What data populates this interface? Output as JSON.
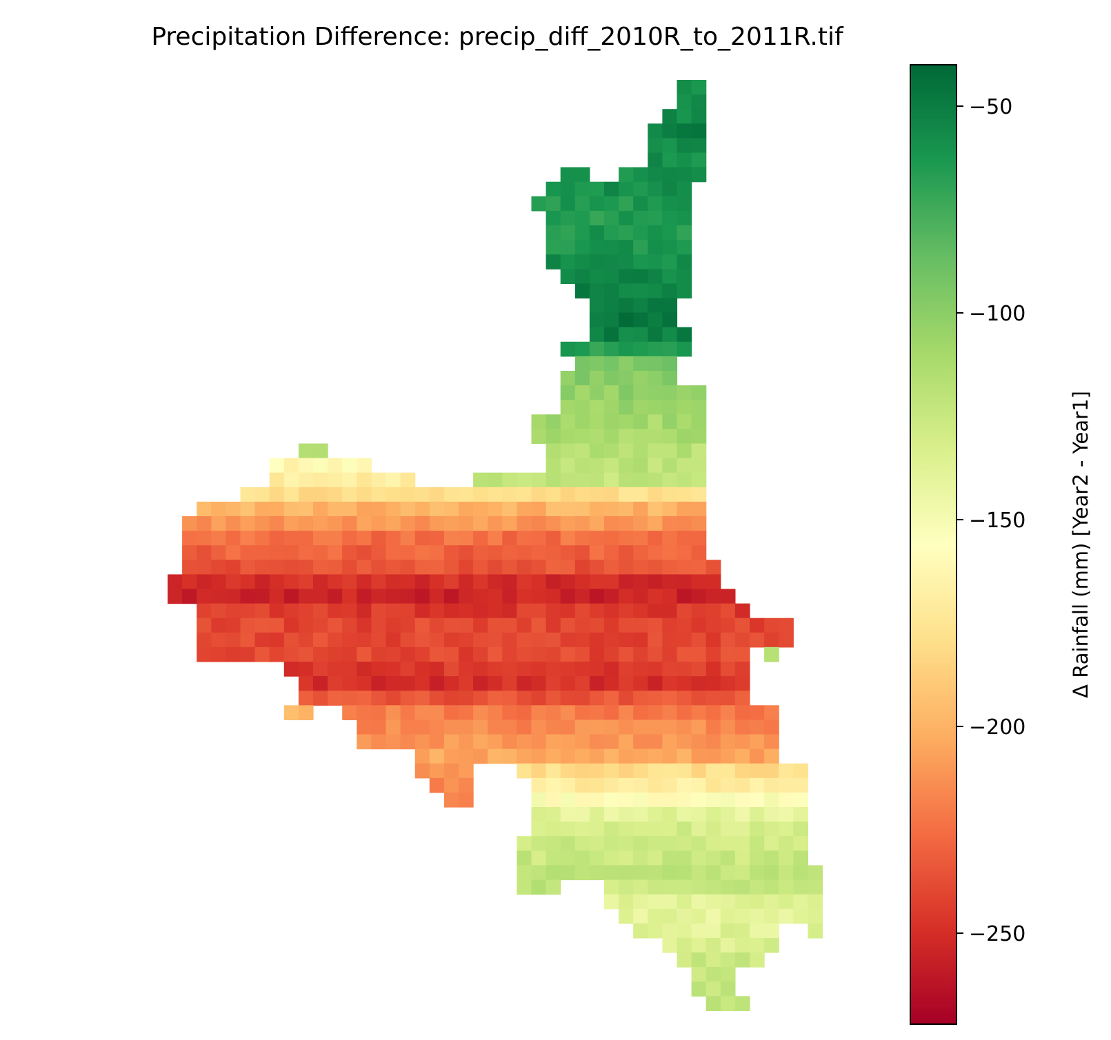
{
  "chart_data": {
    "type": "heatmap",
    "title": "Precipitation Difference: precip_diff_2010R_to_2011R.tif",
    "colormap": "RdYlGn",
    "colorbar": {
      "label": "Δ Rainfall (mm) [Year2 - Year1]",
      "range": [
        -272,
        -40
      ],
      "ticks": [
        -50,
        -100,
        -150,
        -200,
        -250
      ],
      "tick_labels": [
        "−50",
        "−100",
        "−150",
        "−200",
        "−250"
      ]
    },
    "grid": {
      "cols": 45,
      "rows": 64,
      "cell_value_unit": "mm"
    },
    "note_min": "darkest red (≈ −270 mm) at far west of the region",
    "note_max": "darkest green (≈ −45 mm) at the northern lobe",
    "rows": [
      {
        "row": 0,
        "runs": [
          [
            35,
            36,
            -60
          ]
        ]
      },
      {
        "row": 1,
        "runs": [
          [
            35,
            36,
            -60
          ]
        ]
      },
      {
        "row": 2,
        "runs": [
          [
            34,
            36,
            -55
          ]
        ]
      },
      {
        "row": 3,
        "runs": [
          [
            33,
            36,
            -52
          ]
        ]
      },
      {
        "row": 4,
        "runs": [
          [
            33,
            36,
            -58
          ]
        ]
      },
      {
        "row": 5,
        "runs": [
          [
            33,
            36,
            -60
          ]
        ]
      },
      {
        "row": 6,
        "runs": [
          [
            27,
            28,
            -62
          ],
          [
            31,
            36,
            -58
          ]
        ]
      },
      {
        "row": 7,
        "runs": [
          [
            26,
            35,
            -60
          ]
        ]
      },
      {
        "row": 8,
        "runs": [
          [
            25,
            35,
            -64
          ]
        ]
      },
      {
        "row": 9,
        "runs": [
          [
            26,
            35,
            -66
          ]
        ]
      },
      {
        "row": 10,
        "runs": [
          [
            26,
            35,
            -64
          ]
        ]
      },
      {
        "row": 11,
        "runs": [
          [
            26,
            35,
            -62
          ]
        ]
      },
      {
        "row": 12,
        "runs": [
          [
            26,
            35,
            -60
          ]
        ]
      },
      {
        "row": 13,
        "runs": [
          [
            27,
            35,
            -55
          ]
        ]
      },
      {
        "row": 14,
        "runs": [
          [
            28,
            35,
            -52
          ]
        ]
      },
      {
        "row": 15,
        "runs": [
          [
            29,
            34,
            -48
          ]
        ]
      },
      {
        "row": 16,
        "runs": [
          [
            29,
            34,
            -48
          ]
        ]
      },
      {
        "row": 17,
        "runs": [
          [
            29,
            35,
            -52
          ]
        ]
      },
      {
        "row": 18,
        "runs": [
          [
            27,
            35,
            -68
          ]
        ]
      },
      {
        "row": 19,
        "runs": [
          [
            28,
            34,
            -95
          ]
        ]
      },
      {
        "row": 20,
        "runs": [
          [
            27,
            34,
            -100
          ]
        ]
      },
      {
        "row": 21,
        "runs": [
          [
            27,
            36,
            -102
          ]
        ]
      },
      {
        "row": 22,
        "runs": [
          [
            27,
            36,
            -105
          ]
        ]
      },
      {
        "row": 23,
        "runs": [
          [
            25,
            36,
            -110
          ]
        ]
      },
      {
        "row": 24,
        "runs": [
          [
            25,
            36,
            -112
          ]
        ]
      },
      {
        "row": 25,
        "runs": [
          [
            9,
            10,
            -118
          ],
          [
            26,
            36,
            -118
          ]
        ]
      },
      {
        "row": 26,
        "runs": [
          [
            7,
            13,
            -160
          ],
          [
            26,
            36,
            -120
          ]
        ]
      },
      {
        "row": 27,
        "runs": [
          [
            7,
            16,
            -170
          ],
          [
            21,
            36,
            -122
          ]
        ]
      },
      {
        "row": 28,
        "runs": [
          [
            5,
            36,
            -180
          ]
        ]
      },
      {
        "row": 29,
        "runs": [
          [
            2,
            36,
            -200
          ]
        ]
      },
      {
        "row": 30,
        "runs": [
          [
            1,
            36,
            -210
          ]
        ]
      },
      {
        "row": 31,
        "runs": [
          [
            1,
            36,
            -225
          ]
        ]
      },
      {
        "row": 32,
        "runs": [
          [
            1,
            36,
            -230
          ]
        ]
      },
      {
        "row": 33,
        "runs": [
          [
            1,
            37,
            -235
          ]
        ]
      },
      {
        "row": 34,
        "runs": [
          [
            0,
            37,
            -250
          ]
        ]
      },
      {
        "row": 35,
        "runs": [
          [
            0,
            38,
            -255
          ]
        ]
      },
      {
        "row": 36,
        "runs": [
          [
            2,
            39,
            -245
          ]
        ]
      },
      {
        "row": 37,
        "runs": [
          [
            2,
            42,
            -240
          ]
        ]
      },
      {
        "row": 38,
        "runs": [
          [
            2,
            42,
            -240
          ]
        ]
      },
      {
        "row": 39,
        "runs": [
          [
            2,
            39,
            -240
          ],
          [
            41,
            41,
            -118
          ]
        ]
      },
      {
        "row": 40,
        "runs": [
          [
            8,
            39,
            -245
          ]
        ]
      },
      {
        "row": 41,
        "runs": [
          [
            9,
            39,
            -250
          ]
        ]
      },
      {
        "row": 42,
        "runs": [
          [
            9,
            39,
            -235
          ]
        ]
      },
      {
        "row": 43,
        "runs": [
          [
            8,
            9,
            -200
          ],
          [
            12,
            41,
            -220
          ]
        ]
      },
      {
        "row": 44,
        "runs": [
          [
            13,
            41,
            -215
          ]
        ]
      },
      {
        "row": 45,
        "runs": [
          [
            13,
            41,
            -210
          ]
        ]
      },
      {
        "row": 46,
        "runs": [
          [
            17,
            41,
            -205
          ]
        ]
      },
      {
        "row": 47,
        "runs": [
          [
            17,
            20,
            -210
          ],
          [
            24,
            43,
            -180
          ]
        ]
      },
      {
        "row": 48,
        "runs": [
          [
            18,
            20,
            -215
          ],
          [
            25,
            43,
            -170
          ]
        ]
      },
      {
        "row": 49,
        "runs": [
          [
            19,
            20,
            -215
          ],
          [
            25,
            43,
            -155
          ]
        ]
      },
      {
        "row": 50,
        "runs": [
          [
            25,
            43,
            -140
          ]
        ]
      },
      {
        "row": 51,
        "runs": [
          [
            25,
            43,
            -132
          ]
        ]
      },
      {
        "row": 52,
        "runs": [
          [
            24,
            43,
            -128
          ]
        ]
      },
      {
        "row": 53,
        "runs": [
          [
            24,
            43,
            -125
          ]
        ]
      },
      {
        "row": 54,
        "runs": [
          [
            24,
            44,
            -122
          ]
        ]
      },
      {
        "row": 55,
        "runs": [
          [
            24,
            26,
            -118
          ],
          [
            30,
            44,
            -125
          ]
        ]
      },
      {
        "row": 56,
        "runs": [
          [
            30,
            44,
            -138
          ]
        ]
      },
      {
        "row": 57,
        "runs": [
          [
            31,
            44,
            -140
          ]
        ]
      },
      {
        "row": 58,
        "runs": [
          [
            32,
            41,
            -138
          ],
          [
            44,
            44,
            -130
          ]
        ]
      },
      {
        "row": 59,
        "runs": [
          [
            34,
            41,
            -135
          ]
        ]
      },
      {
        "row": 60,
        "runs": [
          [
            35,
            40,
            -128
          ]
        ]
      },
      {
        "row": 61,
        "runs": [
          [
            36,
            38,
            -126
          ]
        ]
      },
      {
        "row": 62,
        "runs": [
          [
            36,
            38,
            -126
          ]
        ]
      },
      {
        "row": 63,
        "runs": [
          [
            37,
            39,
            -124
          ]
        ]
      }
    ]
  }
}
